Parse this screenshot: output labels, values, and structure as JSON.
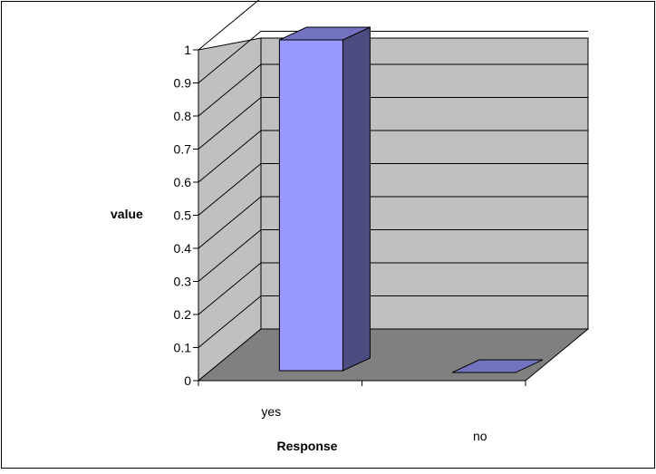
{
  "chart_data": {
    "type": "bar",
    "style": "3d-column",
    "categories": [
      "yes",
      "no"
    ],
    "values": [
      1,
      0
    ],
    "xlabel": "Response",
    "ylabel": "value",
    "ylim": [
      0,
      1
    ],
    "yticks": [
      "0",
      "0.1",
      "0.2",
      "0.3",
      "0.4",
      "0.5",
      "0.6",
      "0.7",
      "0.8",
      "0.9",
      "1"
    ],
    "grid": true,
    "legend": "none",
    "colors": {
      "bar_front": "#9999ff",
      "bar_side": "#4c4c80",
      "bar_top": "#7272c0",
      "walls": "#c0c0c0",
      "floor": "#808080"
    }
  }
}
